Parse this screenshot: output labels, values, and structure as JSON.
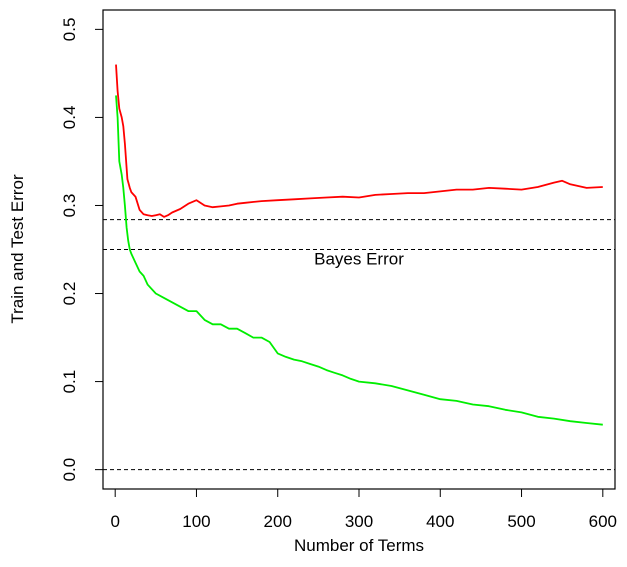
{
  "chart_data": {
    "type": "line",
    "title": "",
    "xlabel": "Number of Terms",
    "ylabel": "Train and Test Error",
    "xlim": [
      -15,
      615
    ],
    "ylim": [
      -0.022,
      0.522
    ],
    "x_ticks": [
      0,
      100,
      200,
      300,
      400,
      500,
      600
    ],
    "x_tick_labels": [
      "0",
      "100",
      "200",
      "300",
      "400",
      "500",
      "600"
    ],
    "y_ticks": [
      0.0,
      0.1,
      0.2,
      0.3,
      0.4,
      0.5
    ],
    "y_tick_labels": [
      "0.0",
      "0.1",
      "0.2",
      "0.3",
      "0.4",
      "0.5"
    ],
    "grid": false,
    "legend": "none",
    "series": [
      {
        "color": "#ff0000",
        "x": [
          1,
          3,
          5,
          8,
          10,
          12,
          15,
          18,
          20,
          25,
          30,
          35,
          40,
          45,
          50,
          55,
          60,
          65,
          70,
          80,
          90,
          100,
          110,
          120,
          130,
          140,
          150,
          160,
          180,
          200,
          220,
          240,
          260,
          280,
          300,
          320,
          340,
          360,
          380,
          400,
          420,
          440,
          460,
          480,
          500,
          520,
          540,
          550,
          560,
          580,
          600
        ],
        "y": [
          0.46,
          0.43,
          0.41,
          0.4,
          0.39,
          0.37,
          0.33,
          0.32,
          0.315,
          0.31,
          0.295,
          0.29,
          0.289,
          0.288,
          0.289,
          0.29,
          0.287,
          0.289,
          0.292,
          0.296,
          0.302,
          0.306,
          0.3,
          0.298,
          0.299,
          0.3,
          0.302,
          0.303,
          0.305,
          0.306,
          0.307,
          0.308,
          0.309,
          0.31,
          0.309,
          0.312,
          0.313,
          0.314,
          0.314,
          0.316,
          0.318,
          0.318,
          0.32,
          0.319,
          0.318,
          0.321,
          0.326,
          0.328,
          0.324,
          0.32,
          0.321
        ]
      },
      {
        "color": "#00ee00",
        "x": [
          1,
          3,
          5,
          8,
          10,
          12,
          14,
          16,
          18,
          20,
          25,
          30,
          35,
          40,
          50,
          60,
          70,
          80,
          90,
          100,
          110,
          120,
          130,
          140,
          150,
          160,
          170,
          180,
          190,
          200,
          210,
          220,
          230,
          240,
          250,
          260,
          270,
          280,
          290,
          300,
          320,
          340,
          360,
          380,
          400,
          420,
          440,
          460,
          480,
          500,
          520,
          540,
          560,
          580,
          600
        ],
        "y": [
          0.425,
          0.4,
          0.35,
          0.335,
          0.32,
          0.3,
          0.275,
          0.26,
          0.25,
          0.245,
          0.235,
          0.225,
          0.22,
          0.21,
          0.2,
          0.195,
          0.19,
          0.185,
          0.18,
          0.18,
          0.17,
          0.165,
          0.165,
          0.16,
          0.16,
          0.155,
          0.15,
          0.15,
          0.145,
          0.132,
          0.128,
          0.125,
          0.123,
          0.12,
          0.117,
          0.113,
          0.11,
          0.107,
          0.103,
          0.1,
          0.098,
          0.095,
          0.09,
          0.085,
          0.08,
          0.078,
          0.074,
          0.072,
          0.068,
          0.065,
          0.06,
          0.058,
          0.055,
          0.053,
          0.051
        ]
      }
    ],
    "reference_lines": [
      {
        "y": 0.284,
        "style": "dashed"
      },
      {
        "y": 0.25,
        "style": "dashed",
        "label": "Bayes Error"
      },
      {
        "y": 0.0,
        "style": "dashed"
      }
    ]
  }
}
